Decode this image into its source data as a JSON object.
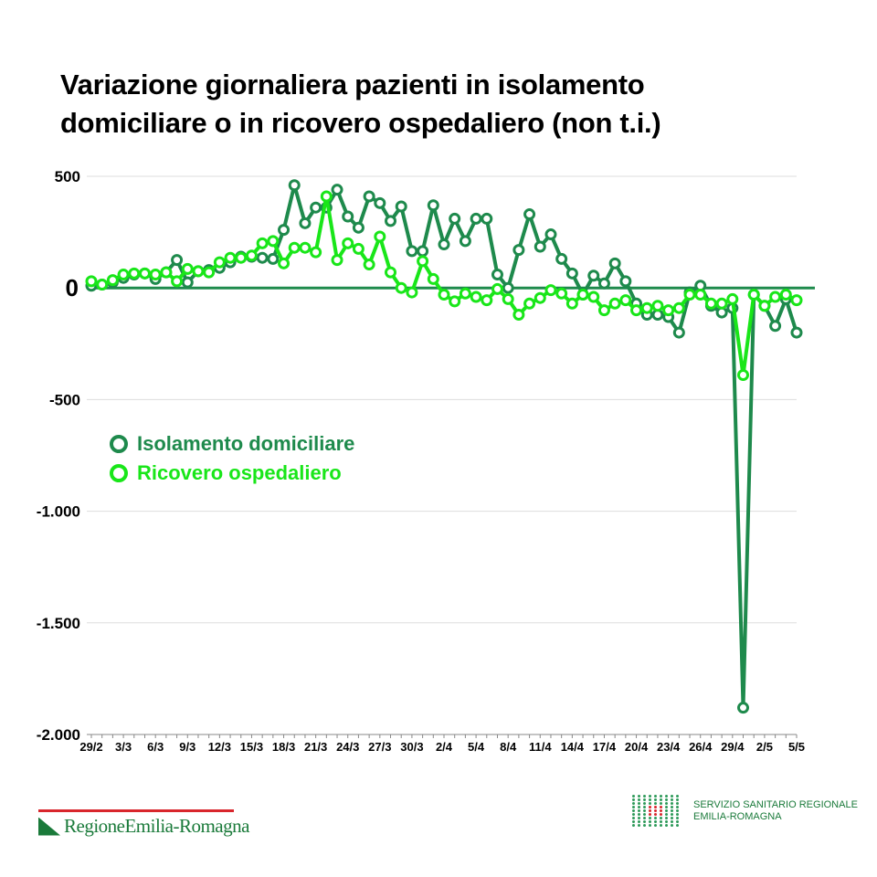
{
  "title_line1": "Variazione giornaliera pazienti in isolamento",
  "title_line2": "domiciliare  o in ricovero ospedaliero (non t.i.)",
  "chart_data": {
    "type": "line",
    "title": "Variazione giornaliera pazienti in isolamento domiciliare  o in ricovero ospedaliero (non t.i.)",
    "ylim": [
      -2000,
      500
    ],
    "yticks": [
      500,
      0,
      -500,
      -1000,
      -1500,
      -2000
    ],
    "ytick_labels": [
      "500",
      "0",
      "-500",
      "-1.000",
      "-1.500",
      "-2.000"
    ],
    "xtick_labels": [
      "29/2",
      "3/3",
      "6/3",
      "9/3",
      "12/3",
      "15/3",
      "18/3",
      "21/3",
      "24/3",
      "27/3",
      "30/3",
      "2/4",
      "5/4",
      "8/4",
      "11/4",
      "14/4",
      "17/4",
      "20/4",
      "23/4",
      "26/4",
      "29/4",
      "2/5",
      "5/5"
    ],
    "xtick_every": 3,
    "n_points": 67,
    "series": [
      {
        "name": "Isolamento domiciliare",
        "color": "#1e8a4c",
        "values": [
          10,
          15,
          25,
          45,
          60,
          65,
          40,
          70,
          125,
          25,
          75,
          80,
          90,
          115,
          140,
          140,
          135,
          130,
          260,
          460,
          290,
          360,
          360,
          440,
          320,
          270,
          410,
          380,
          300,
          365,
          165,
          165,
          370,
          195,
          310,
          210,
          310,
          310,
          60,
          0,
          170,
          330,
          185,
          240,
          130,
          65,
          -30,
          55,
          20,
          110,
          30,
          -70,
          -120,
          -120,
          -130,
          -200,
          -20,
          10,
          -80,
          -110,
          -90,
          -1880,
          -30,
          -80,
          -170,
          -50,
          -200
        ]
      },
      {
        "name": "Ricovero ospedaliero",
        "color": "#19e619",
        "values": [
          30,
          15,
          35,
          60,
          65,
          65,
          60,
          70,
          30,
          85,
          75,
          70,
          115,
          135,
          135,
          145,
          200,
          210,
          110,
          180,
          180,
          160,
          410,
          125,
          200,
          175,
          105,
          230,
          70,
          0,
          -20,
          120,
          40,
          -30,
          -60,
          -25,
          -40,
          -55,
          -5,
          -50,
          -120,
          -70,
          -45,
          -10,
          -25,
          -70,
          -30,
          -40,
          -100,
          -70,
          -55,
          -100,
          -90,
          -80,
          -100,
          -90,
          -30,
          -30,
          -70,
          -70,
          -50,
          -390,
          -30,
          -80,
          -40,
          -30,
          -55
        ]
      }
    ],
    "legend_position": "left-middle",
    "grid": true
  },
  "legend": {
    "item1": "Isolamento domiciliare",
    "item2": "Ricovero ospedaliero"
  },
  "logo_left": "RegioneEmilia-Romagna",
  "logo_right_line1": "SERVIZIO SANITARIO REGIONALE",
  "logo_right_line2": "EMILIA-ROMAGNA"
}
